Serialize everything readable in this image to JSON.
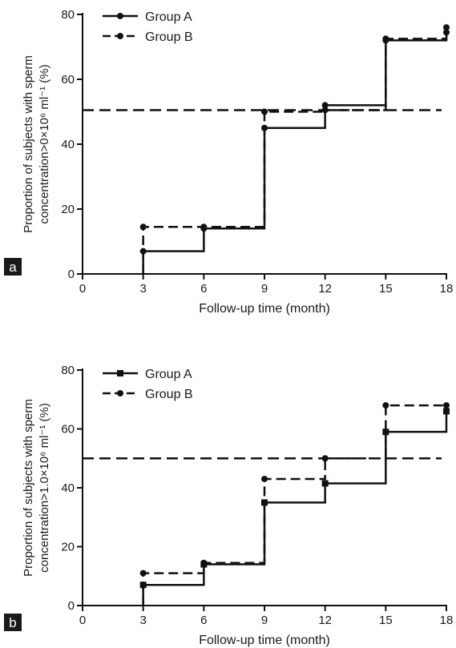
{
  "chart_data": [
    {
      "panel_label": "a",
      "type": "line",
      "step": true,
      "xlabel": "Follow-up time (month)",
      "ylabel_line1": "Proportion of subjects with sperm",
      "ylabel_line2": "concentration>0×10⁶ ml⁻¹ (%)",
      "xlim": [
        0,
        18
      ],
      "ylim": [
        0,
        80
      ],
      "xticks": [
        0,
        3,
        6,
        9,
        12,
        15,
        18
      ],
      "yticks": [
        0,
        20,
        40,
        60,
        80
      ],
      "grid": false,
      "legend_position": "top-left",
      "reference_line": 50.5,
      "series": [
        {
          "name": "Group A",
          "line": "solid",
          "marker": "circle",
          "x": [
            3,
            6,
            9,
            12,
            15,
            18
          ],
          "y": [
            7,
            14,
            45,
            52,
            72,
            76
          ]
        },
        {
          "name": "Group B",
          "line": "dashed",
          "marker": "circle",
          "x": [
            3,
            6,
            9,
            12,
            15,
            18
          ],
          "y": [
            14.5,
            14.5,
            50,
            50.5,
            72.5,
            74.5
          ]
        }
      ]
    },
    {
      "panel_label": "b",
      "type": "line",
      "step": true,
      "xlabel": "Follow-up time (month)",
      "ylabel_line1": "Proportion of subjects with sperm",
      "ylabel_line2": "concentration>1.0×10⁶ ml⁻¹ (%)",
      "xlim": [
        0,
        18
      ],
      "ylim": [
        0,
        80
      ],
      "xticks": [
        0,
        3,
        6,
        9,
        12,
        15,
        18
      ],
      "yticks": [
        0,
        20,
        40,
        60,
        80
      ],
      "grid": false,
      "legend_position": "top-left",
      "reference_line": 50,
      "series": [
        {
          "name": "Group A",
          "line": "solid",
          "marker": "square",
          "x": [
            3,
            6,
            9,
            12,
            15,
            18
          ],
          "y": [
            7,
            14,
            35,
            41.5,
            59,
            66
          ]
        },
        {
          "name": "Group B",
          "line": "dashed",
          "marker": "circle",
          "x": [
            3,
            6,
            9,
            12,
            15,
            18
          ],
          "y": [
            11,
            14.5,
            43,
            50,
            68,
            68
          ]
        }
      ]
    }
  ]
}
